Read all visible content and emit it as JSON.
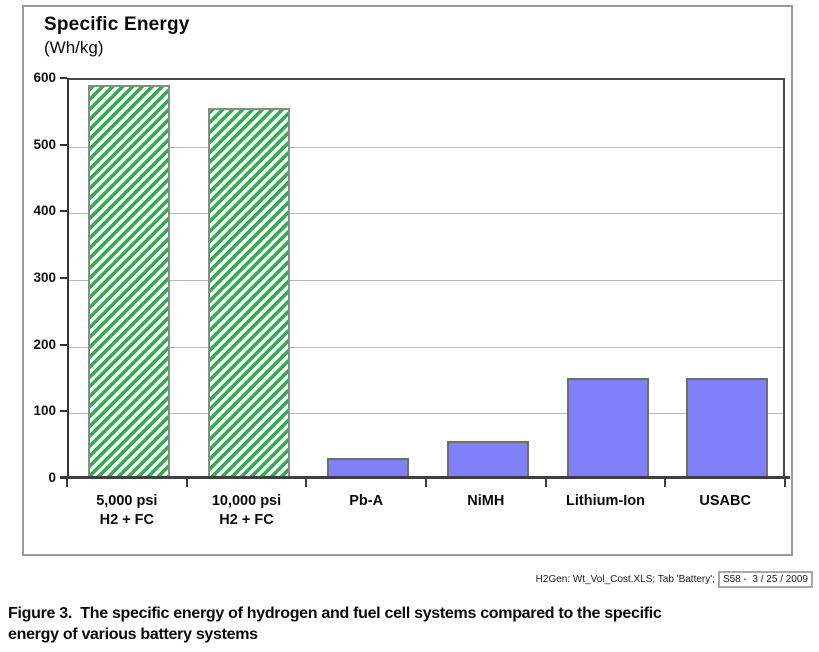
{
  "chart_data": {
    "type": "bar",
    "title": "Specific Energy",
    "units_label": "(Wh/kg)",
    "categories": [
      [
        "5,000 psi",
        "H2 + FC"
      ],
      [
        "10,000 psi",
        "H2 + FC"
      ],
      [
        "Pb-A"
      ],
      [
        "NiMH"
      ],
      [
        "Lithium-Ion"
      ],
      [
        "USABC"
      ]
    ],
    "values": [
      590,
      555,
      30,
      55,
      150,
      150
    ],
    "styles": [
      "green-hatch",
      "green-hatch",
      "purple",
      "purple",
      "purple",
      "purple"
    ],
    "ylim": [
      0,
      600
    ],
    "yticks": [
      0,
      100,
      200,
      300,
      400,
      500,
      600
    ],
    "grid": "horizontal",
    "legend": "none",
    "colors": {
      "hatch_green": "#2eae4e",
      "hatch_background": "#ffffff",
      "bar_purple": "#8080fb",
      "green_bar_border": "#8a8a8a",
      "purple_bar_border": "#6e6e6e",
      "gridline": "#b9b9b9",
      "axis": "#404040"
    }
  },
  "footer": {
    "source_text": "H2Gen: Wt_Vol_Cost.XLS; Tab 'Battery';",
    "stamp_text": "S58 -  3 / 25 / 2009"
  },
  "caption": {
    "line1": "Figure 3.  The specific energy of hydrogen and fuel cell systems compared to the specific",
    "line2": "energy of various battery systems"
  }
}
